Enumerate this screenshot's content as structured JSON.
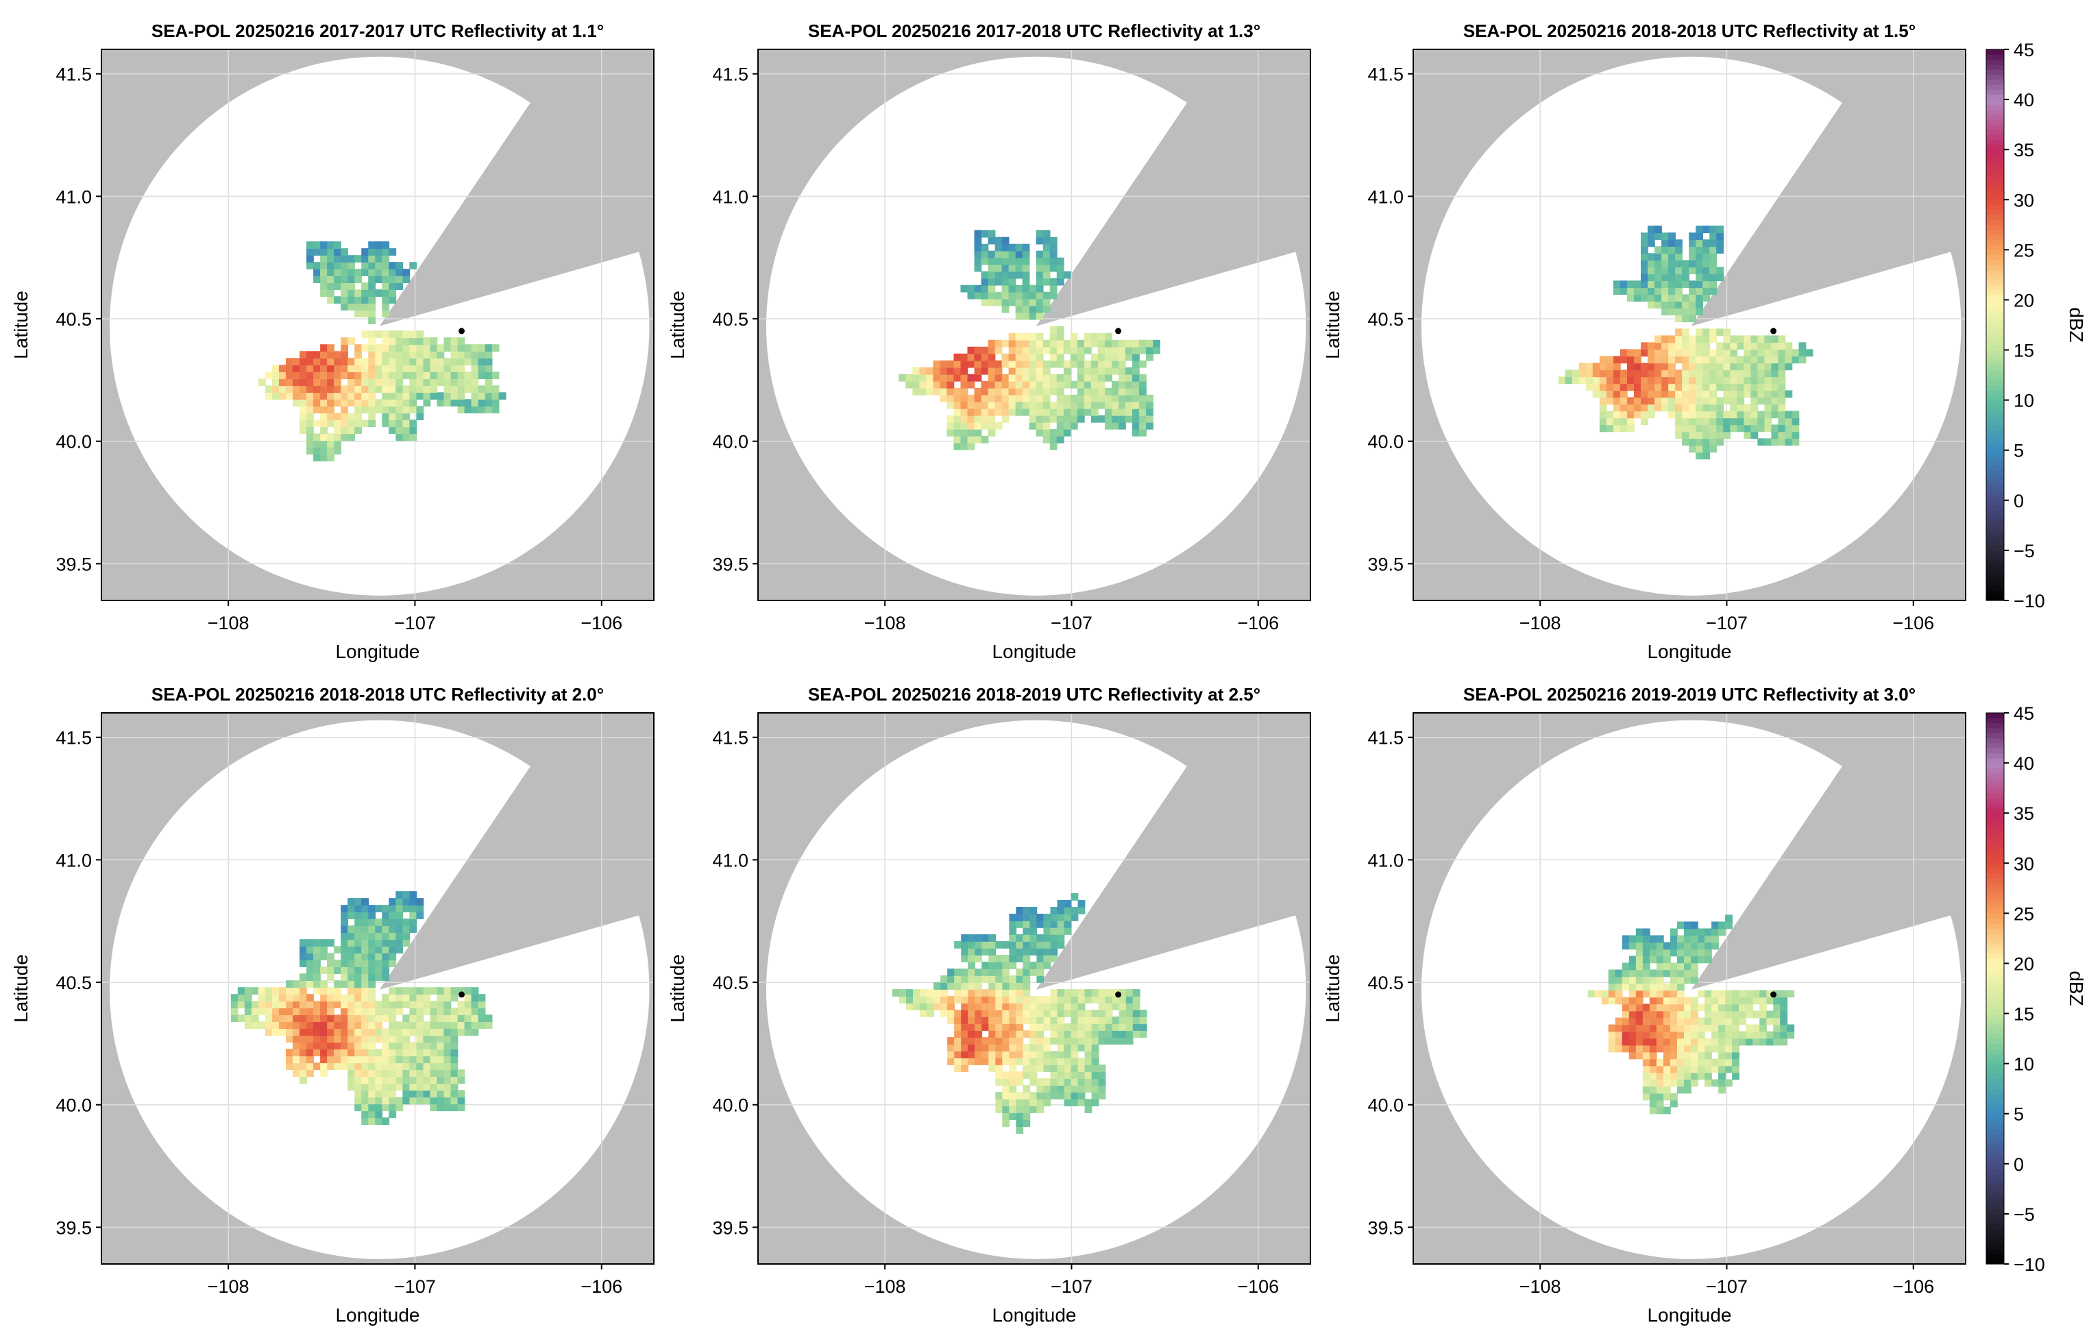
{
  "colors": {
    "no_coverage": "#bdbdbd",
    "coverage": "#ffffff",
    "grid": "#dddddd",
    "site_marker": "#000000"
  },
  "colormap": {
    "name": "Spectral (reversed) + purples",
    "stops": [
      [
        -10,
        "#000000"
      ],
      [
        -5,
        "#2a2838"
      ],
      [
        0,
        "#4a4d86"
      ],
      [
        5,
        "#3a8cbf"
      ],
      [
        10,
        "#5fbf9d"
      ],
      [
        15,
        "#c5e69d"
      ],
      [
        20,
        "#fff6b0"
      ],
      [
        25,
        "#f7a05a"
      ],
      [
        30,
        "#e34b3a"
      ],
      [
        35,
        "#c22761"
      ],
      [
        40,
        "#b087c0"
      ],
      [
        45,
        "#4e0a4a"
      ]
    ]
  },
  "chart_data": [
    {
      "type": "heatmap",
      "title": "SEA-POL 20250216 2017-2017 UTC Reflectivity at 1.1°",
      "xlabel": "Longitude",
      "ylabel": "Latitude",
      "xlim": [
        -108.68,
        -105.72
      ],
      "ylim": [
        39.35,
        41.6
      ],
      "xticks": [
        -108,
        -107,
        -106
      ],
      "yticks": [
        39.5,
        40.0,
        40.5,
        41.0,
        41.5
      ],
      "grid": true,
      "radar_center": [
        -107.19,
        40.47
      ],
      "max_range_deg_lat": 1.1,
      "blocked_sector_deg": [
        16,
        56
      ],
      "site_marker": [
        -106.75,
        40.45
      ],
      "echo_sectors_deg": [
        [
          200,
          350
        ],
        [
          95,
          152
        ],
        [
          60,
          92
        ]
      ],
      "echo_max_range": 0.62,
      "peak": [
        -107.55,
        40.3
      ]
    },
    {
      "type": "heatmap",
      "title": "SEA-POL 20250216 2017-2018 UTC Reflectivity at 1.3°",
      "xlabel": "Longitude",
      "ylabel": "Latitude",
      "xlim": [
        -108.68,
        -105.72
      ],
      "ylim": [
        39.35,
        41.6
      ],
      "xticks": [
        -108,
        -107,
        -106
      ],
      "yticks": [
        39.5,
        40.0,
        40.5,
        41.0,
        41.5
      ],
      "grid": true,
      "radar_center": [
        -107.19,
        40.47
      ],
      "max_range_deg_lat": 1.1,
      "blocked_sector_deg": [
        16,
        56
      ],
      "site_marker": [
        -106.75,
        40.45
      ],
      "echo_sectors_deg": [
        [
          200,
          352
        ],
        [
          95,
          155
        ],
        [
          58,
          90
        ]
      ],
      "echo_max_range": 0.63,
      "peak": [
        -107.55,
        40.3
      ]
    },
    {
      "type": "heatmap",
      "title": "SEA-POL 20250216 2018-2018 UTC Reflectivity at 1.5°",
      "xlabel": "Longitude",
      "ylabel": "Latitude",
      "xlim": [
        -108.68,
        -105.72
      ],
      "ylim": [
        39.35,
        41.6
      ],
      "xticks": [
        -108,
        -107,
        -106
      ],
      "yticks": [
        39.5,
        40.0,
        40.5,
        41.0,
        41.5
      ],
      "grid": true,
      "radar_center": [
        -107.19,
        40.47
      ],
      "max_range_deg_lat": 1.1,
      "blocked_sector_deg": [
        16,
        56
      ],
      "site_marker": [
        -106.75,
        40.45
      ],
      "echo_sectors_deg": [
        [
          200,
          352
        ],
        [
          95,
          155
        ],
        [
          58,
          92
        ]
      ],
      "echo_max_range": 0.64,
      "peak": [
        -107.5,
        40.28
      ]
    },
    {
      "type": "heatmap",
      "title": "SEA-POL 20250216 2018-2018 UTC Reflectivity at 2.0°",
      "xlabel": "Longitude",
      "ylabel": "Latitude",
      "xlim": [
        -108.68,
        -105.72
      ],
      "ylim": [
        39.35,
        41.6
      ],
      "xticks": [
        -108,
        -107,
        -106
      ],
      "yticks": [
        39.5,
        40.0,
        40.5,
        41.0,
        41.5
      ],
      "grid": true,
      "radar_center": [
        -107.19,
        40.47
      ],
      "max_range_deg_lat": 1.1,
      "blocked_sector_deg": [
        16,
        56
      ],
      "site_marker": [
        -106.75,
        40.45
      ],
      "echo_sectors_deg": [
        [
          180,
          360
        ],
        [
          60,
          180
        ]
      ],
      "echo_max_range": 0.62,
      "peak": [
        -107.55,
        40.28
      ]
    },
    {
      "type": "heatmap",
      "title": "SEA-POL 20250216 2018-2019 UTC Reflectivity at 2.5°",
      "xlabel": "Longitude",
      "ylabel": "Latitude",
      "xlim": [
        -108.68,
        -105.72
      ],
      "ylim": [
        39.35,
        41.6
      ],
      "xticks": [
        -108,
        -107,
        -106
      ],
      "yticks": [
        39.5,
        40.0,
        40.5,
        41.0,
        41.5
      ],
      "grid": true,
      "radar_center": [
        -107.19,
        40.47
      ],
      "max_range_deg_lat": 1.1,
      "blocked_sector_deg": [
        16,
        56
      ],
      "site_marker": [
        -106.75,
        40.45
      ],
      "echo_sectors_deg": [
        [
          180,
          360
        ],
        [
          60,
          180
        ]
      ],
      "echo_max_range": 0.6,
      "peak": [
        -107.55,
        40.28
      ]
    },
    {
      "type": "heatmap",
      "title": "SEA-POL 20250216 2019-2019 UTC Reflectivity at 3.0°",
      "xlabel": "Longitude",
      "ylabel": "Latitude",
      "xlim": [
        -108.68,
        -105.72
      ],
      "ylim": [
        39.35,
        41.6
      ],
      "xticks": [
        -108,
        -107,
        -106
      ],
      "yticks": [
        39.5,
        40.0,
        40.5,
        41.0,
        41.5
      ],
      "grid": true,
      "radar_center": [
        -107.19,
        40.47
      ],
      "max_range_deg_lat": 1.1,
      "blocked_sector_deg": [
        16,
        56
      ],
      "site_marker": [
        -106.75,
        40.45
      ],
      "echo_sectors_deg": [
        [
          180,
          360
        ],
        [
          60,
          180
        ]
      ],
      "echo_max_range": 0.52,
      "peak": [
        -107.5,
        40.3
      ]
    }
  ],
  "colorbars": [
    {
      "label": "dBZ",
      "min": -10,
      "max": 45,
      "ticks": [
        -10,
        -5,
        0,
        5,
        10,
        15,
        20,
        25,
        30,
        35,
        40,
        45
      ]
    },
    {
      "label": "dBZ",
      "min": -10,
      "max": 45,
      "ticks": [
        -10,
        -5,
        0,
        5,
        10,
        15,
        20,
        25,
        30,
        35,
        40,
        45
      ]
    }
  ]
}
